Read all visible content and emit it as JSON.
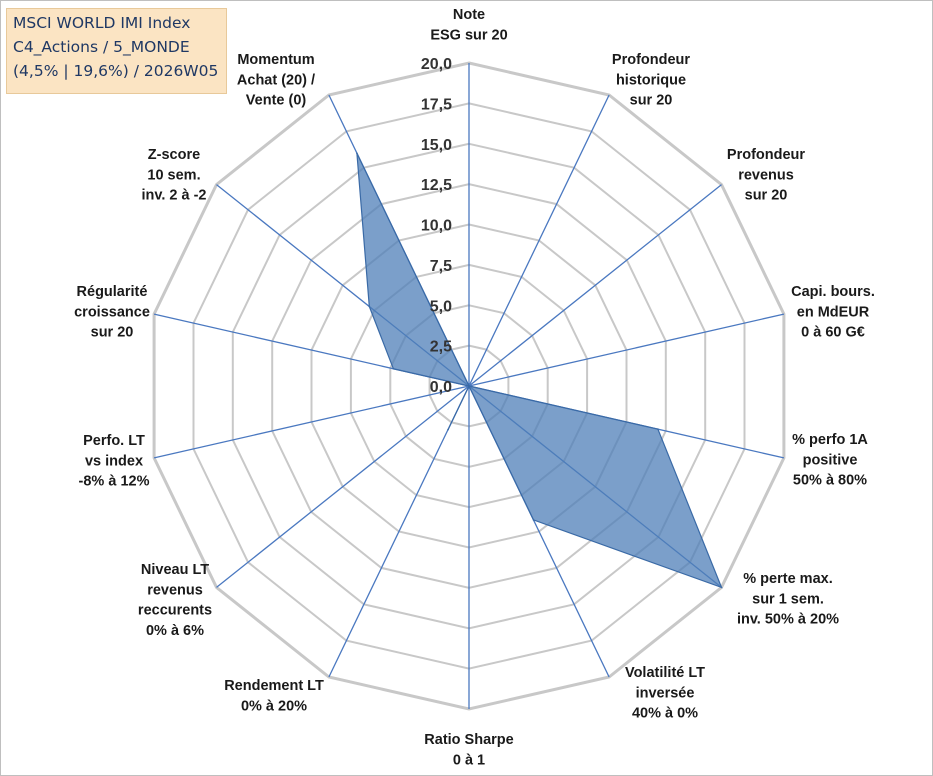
{
  "info_box": {
    "line1": "MSCI WORLD IMI Index",
    "line2": "C4_Actions / 5_MONDE",
    "line3": "(4,5% | 19,6%) / 2026W05"
  },
  "colors": {
    "fill": "#4f7fb8",
    "stroke": "#3a6aa6",
    "grid": "#c8c8c8",
    "spoke": "#4a78c0"
  },
  "chart_data": {
    "type": "radar",
    "title": "",
    "ylim": [
      0,
      20
    ],
    "ticks": [
      "0,0",
      "2,5",
      "5,0",
      "7,5",
      "10,0",
      "12,5",
      "15,0",
      "17,5",
      "20,0"
    ],
    "axes": [
      [
        "Note",
        "ESG sur 20"
      ],
      [
        "Profondeur",
        "historique",
        "sur 20"
      ],
      [
        "Profondeur",
        "revenus",
        "sur 20"
      ],
      [
        "Capi. bours.",
        "en MdEUR",
        "0 à 60 G€"
      ],
      [
        "% perfo 1A",
        "positive",
        "50% à 80%"
      ],
      [
        "% perte max.",
        "sur 1 sem.",
        "inv. 50% à 20%"
      ],
      [
        "Volatilité LT",
        "inversée",
        "40% à 0%"
      ],
      [
        "Ratio Sharpe",
        "0 à 1"
      ],
      [
        "Rendement LT",
        "0% à 20%"
      ],
      [
        "Niveau LT",
        "revenus",
        "reccurents",
        "0% à 6%"
      ],
      [
        "Perfo. LT",
        "vs index",
        "-8% à 12%"
      ],
      [
        "Régularité",
        "croissance",
        "sur 20"
      ],
      [
        "Z-score",
        "10 sem.",
        "inv. 2 à -2"
      ],
      [
        "Momentum",
        "Achat (20) /",
        "Vente (0)"
      ]
    ],
    "values": [
      0,
      0,
      0,
      0,
      12,
      20,
      9.2,
      0,
      3,
      0,
      0,
      4.8,
      7.9,
      16
    ],
    "grid": true,
    "legend": "none"
  }
}
